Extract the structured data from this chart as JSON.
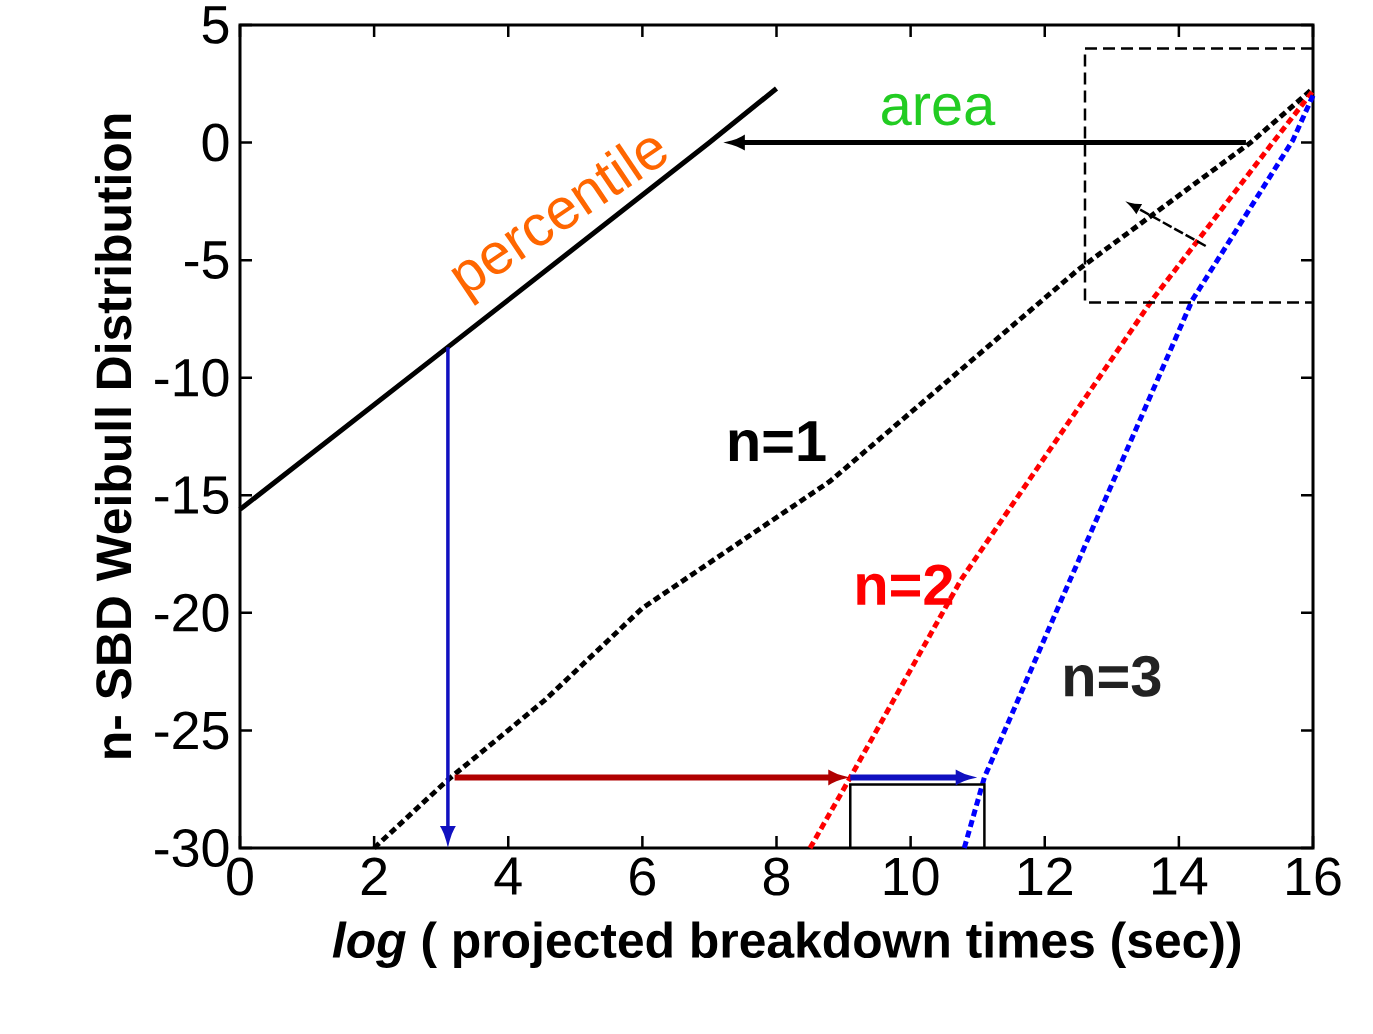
{
  "chart_data": {
    "type": "line",
    "xlabel": "*log* ( projected breakdown times (sec))",
    "ylabel": "n- SBD Weibull Distribution",
    "xlim": [
      0,
      16
    ],
    "ylim": [
      -30,
      5
    ],
    "xticks": [
      0,
      2,
      4,
      6,
      8,
      10,
      12,
      14,
      16
    ],
    "yticks": [
      -30,
      -25,
      -20,
      -15,
      -10,
      -5,
      0,
      5
    ],
    "grid": false,
    "series": [
      {
        "color": "#000000",
        "x": [
          0,
          3.1,
          7,
          8
        ],
        "values": [
          -15.6,
          -8.7,
          0,
          2.3
        ]
      },
      {
        "color": "#000000",
        "line_style": "dashed",
        "x": [
          2,
          3.1,
          4.55,
          6,
          8.8,
          12.5,
          15.07,
          16
        ],
        "values": [
          -30,
          -27.1,
          -23.7,
          -19.8,
          -14.4,
          -5.4,
          0,
          2.3
        ]
      },
      {
        "color": "#ff0000",
        "line_style": "dashed",
        "x": [
          8.5,
          9.1,
          10.75,
          13.6,
          15.4,
          16
        ],
        "values": [
          -30,
          -27,
          -18.6,
          -6.7,
          0,
          2.2
        ]
      },
      {
        "color": "#0000ff",
        "line_style": "dashed",
        "x": [
          10.8,
          11.1,
          12.24,
          14.2,
          15.7,
          16
        ],
        "values": [
          -30,
          -27,
          -19.5,
          -6.7,
          0.1,
          2
        ]
      }
    ],
    "annotations": [
      "percentile",
      "area",
      "n=1",
      "n=2",
      "n=3"
    ]
  }
}
